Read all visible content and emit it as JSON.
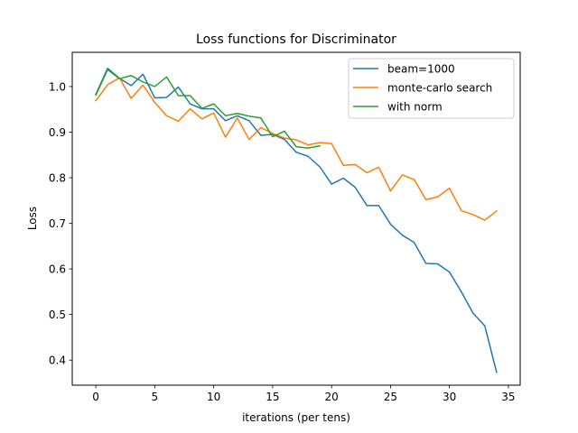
{
  "chart_data": {
    "type": "line",
    "title": "Loss functions for Discriminator",
    "xlabel": "iterations (per tens)",
    "ylabel": "Loss",
    "xlim": [
      -2,
      36
    ],
    "ylim": [
      0.345,
      1.075
    ],
    "xticks": [
      0,
      5,
      10,
      15,
      20,
      25,
      30,
      35
    ],
    "yticks": [
      0.4,
      0.5,
      0.6,
      0.7,
      0.8,
      0.9,
      1.0
    ],
    "ytick_labels": [
      "0.4",
      "0.5",
      "0.6",
      "0.7",
      "0.8",
      "0.9",
      "1.0"
    ],
    "grid": false,
    "legend_position": "top-right",
    "series": [
      {
        "name": "beam=1000",
        "color": "#1f77b4",
        "x": [
          0,
          1,
          2,
          3,
          4,
          5,
          6,
          7,
          8,
          9,
          10,
          11,
          12,
          13,
          14,
          15,
          16,
          17,
          18,
          19,
          20,
          21,
          22,
          23,
          24,
          25,
          26,
          27,
          28,
          29,
          30,
          31,
          32,
          33,
          34
        ],
        "values": [
          0.983,
          1.04,
          1.018,
          1.002,
          1.027,
          0.975,
          0.976,
          0.999,
          0.962,
          0.951,
          0.951,
          0.925,
          0.936,
          0.925,
          0.893,
          0.895,
          0.884,
          0.856,
          0.847,
          0.824,
          0.786,
          0.799,
          0.779,
          0.739,
          0.739,
          0.698,
          0.674,
          0.658,
          0.612,
          0.611,
          0.593,
          0.55,
          0.503,
          0.475,
          0.373
        ]
      },
      {
        "name": "monte-carlo search",
        "color": "#ff7f0e",
        "x": [
          0,
          1,
          2,
          3,
          4,
          5,
          6,
          7,
          8,
          9,
          10,
          11,
          12,
          13,
          14,
          15,
          16,
          17,
          18,
          19,
          20,
          21,
          22,
          23,
          24,
          25,
          26,
          27,
          28,
          29,
          30,
          31,
          32,
          33,
          34
        ],
        "values": [
          0.969,
          1.004,
          1.019,
          0.974,
          1.003,
          0.965,
          0.936,
          0.924,
          0.951,
          0.929,
          0.942,
          0.889,
          0.931,
          0.884,
          0.91,
          0.897,
          0.887,
          0.883,
          0.872,
          0.877,
          0.875,
          0.827,
          0.829,
          0.811,
          0.823,
          0.771,
          0.806,
          0.796,
          0.752,
          0.758,
          0.777,
          0.728,
          0.719,
          0.707,
          0.727
        ]
      },
      {
        "name": "with norm",
        "color": "#2ca02c",
        "x": [
          0,
          1,
          2,
          3,
          4,
          5,
          6,
          7,
          8,
          9,
          10,
          11,
          12,
          13,
          14,
          15,
          16,
          17,
          18,
          19
        ],
        "values": [
          0.981,
          1.037,
          1.017,
          1.024,
          1.01,
          1.0,
          1.021,
          0.98,
          0.98,
          0.952,
          0.962,
          0.936,
          0.941,
          0.935,
          0.931,
          0.89,
          0.902,
          0.868,
          0.865,
          0.87
        ]
      }
    ]
  }
}
